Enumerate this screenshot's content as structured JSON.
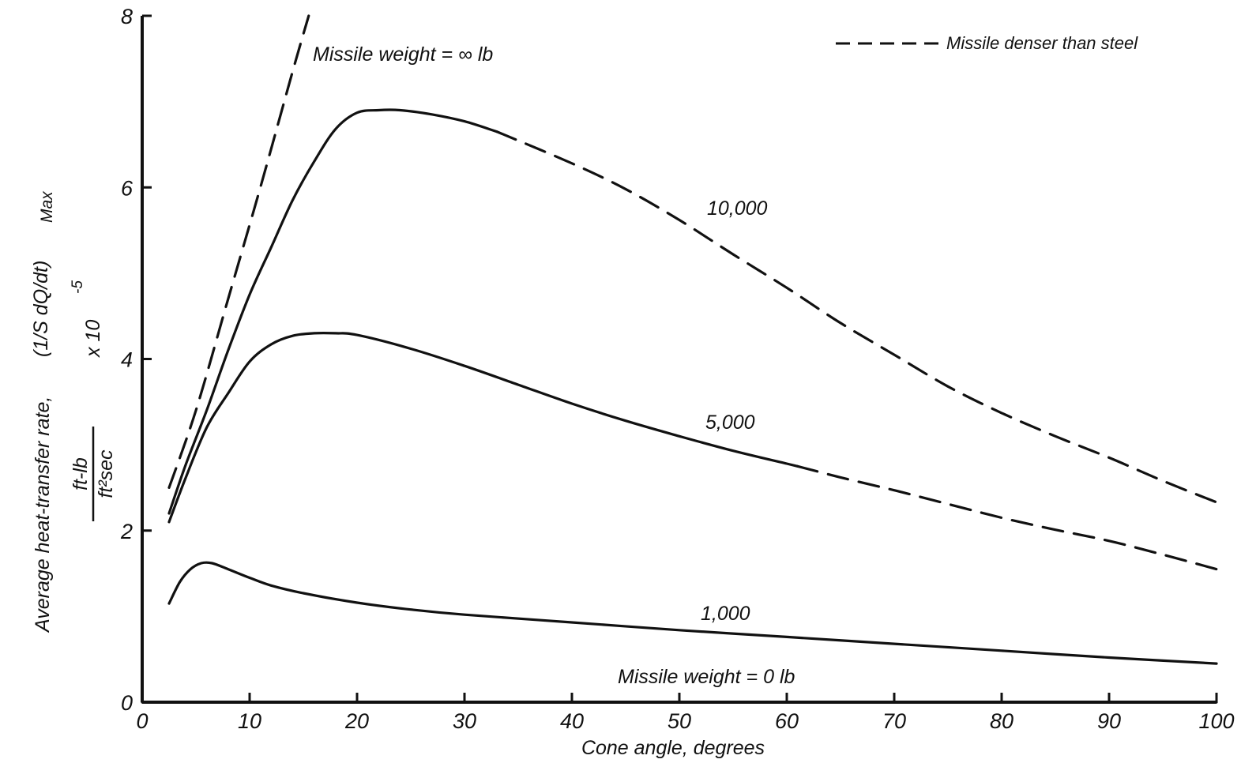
{
  "chart_data": {
    "type": "line",
    "xlabel": "Cone angle, degrees",
    "ylabel": {
      "main": "Average heat-transfer rate,",
      "expression": "(1/S dQ/dt)",
      "subscript": "Max",
      "units_numerator": "ft-lb",
      "units_denominator": "ft²sec",
      "multiplier": "x 10",
      "exponent": "-5"
    },
    "xlim": [
      0,
      100
    ],
    "ylim": [
      0,
      8
    ],
    "x_ticks": [
      "0",
      "10",
      "20",
      "30",
      "40",
      "50",
      "60",
      "70",
      "80",
      "90",
      "100"
    ],
    "y_ticks": [
      "0",
      "2",
      "4",
      "6",
      "8"
    ],
    "grid": false,
    "legend": {
      "position": "top-right",
      "style": "dashed",
      "label": "Missile denser than steel"
    },
    "series": [
      {
        "label": "Missile weight = ∞ lb",
        "style": "dashed",
        "x": [
          2.5,
          5,
          8,
          11,
          14,
          15.5
        ],
        "y": [
          2.5,
          3.4,
          4.7,
          6.0,
          7.35,
          8.0
        ]
      },
      {
        "label": "10,000",
        "x": [
          2.5,
          4,
          6,
          8,
          10,
          12,
          14,
          16,
          18,
          20,
          22,
          24,
          27,
          30,
          33
        ],
        "y": [
          2.2,
          2.75,
          3.4,
          4.1,
          4.75,
          5.3,
          5.85,
          6.3,
          6.68,
          6.87,
          6.9,
          6.9,
          6.85,
          6.77,
          6.65
        ],
        "dashed_x": [
          33,
          40,
          45,
          50,
          55,
          60,
          65,
          70,
          75,
          80,
          85,
          90,
          95,
          100
        ],
        "dashed_y": [
          6.65,
          6.28,
          5.98,
          5.62,
          5.22,
          4.83,
          4.42,
          4.05,
          3.68,
          3.37,
          3.1,
          2.85,
          2.58,
          2.33
        ]
      },
      {
        "label": "5,000",
        "x": [
          2.5,
          4,
          6,
          8,
          10,
          12,
          14,
          16,
          18,
          20,
          25,
          30,
          35,
          40,
          45,
          50,
          55,
          60,
          61
        ],
        "y": [
          2.1,
          2.6,
          3.2,
          3.6,
          3.97,
          4.17,
          4.27,
          4.3,
          4.3,
          4.28,
          4.12,
          3.92,
          3.7,
          3.48,
          3.28,
          3.1,
          2.93,
          2.78,
          2.75
        ],
        "dashed_x": [
          61,
          65,
          70,
          75,
          80,
          85,
          90,
          95,
          100
        ],
        "dashed_y": [
          2.75,
          2.62,
          2.47,
          2.31,
          2.15,
          2.01,
          1.88,
          1.72,
          1.55
        ]
      },
      {
        "label": "1,000",
        "x": [
          2.5,
          3.5,
          4.5,
          5.5,
          6.5,
          8,
          10,
          12,
          15,
          20,
          25,
          30,
          40,
          50,
          60,
          70,
          80,
          90,
          100
        ],
        "y": [
          1.15,
          1.4,
          1.55,
          1.62,
          1.62,
          1.55,
          1.45,
          1.36,
          1.27,
          1.16,
          1.08,
          1.02,
          0.93,
          0.84,
          0.76,
          0.68,
          0.6,
          0.52,
          0.45
        ]
      },
      {
        "label": "Missile weight = 0 lb",
        "x": [
          0,
          100
        ],
        "y": [
          0,
          0
        ]
      }
    ]
  }
}
